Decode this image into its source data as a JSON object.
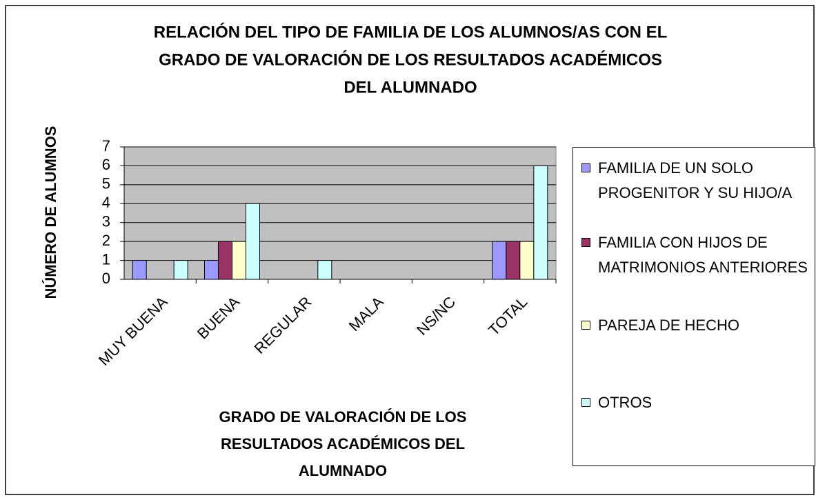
{
  "chart_data": {
    "type": "bar",
    "title": [
      "RELACIÓN DEL TIPO DE FAMILIA DE LOS ALUMNOS/AS CON EL",
      "GRADO DE VALORACIÓN DE LOS RESULTADOS ACADÉMICOS",
      "DEL ALUMNADO"
    ],
    "x_label": [
      "GRADO DE VALORACIÓN DE LOS",
      "RESULTADOS ACADÉMICOS DEL",
      "ALUMNADO"
    ],
    "y_label": "NÚMERO DE ALUMNOS",
    "categories": [
      "MUY BUENA",
      "BUENA",
      "REGULAR",
      "MALA",
      "NS/NC",
      "TOTAL"
    ],
    "series": [
      {
        "name": "FAMILIA DE UN SOLO PROGENITOR Y SU HIJO/A",
        "color": "#9999ff",
        "values": [
          1,
          1,
          0,
          0,
          0,
          2
        ]
      },
      {
        "name": "FAMILIA CON HIJOS DE MATRIMONIOS ANTERIORES",
        "color": "#993366",
        "values": [
          0,
          2,
          0,
          0,
          0,
          2
        ]
      },
      {
        "name": "PAREJA DE HECHO",
        "color": "#ffffcc",
        "values": [
          0,
          2,
          0,
          0,
          0,
          2
        ]
      },
      {
        "name": "OTROS",
        "color": "#ccffff",
        "values": [
          1,
          4,
          1,
          0,
          0,
          6
        ]
      }
    ],
    "ylim": [
      0,
      7
    ],
    "yticks": [
      0,
      1,
      2,
      3,
      4,
      5,
      6,
      7
    ],
    "grid": true,
    "legend": "right"
  }
}
